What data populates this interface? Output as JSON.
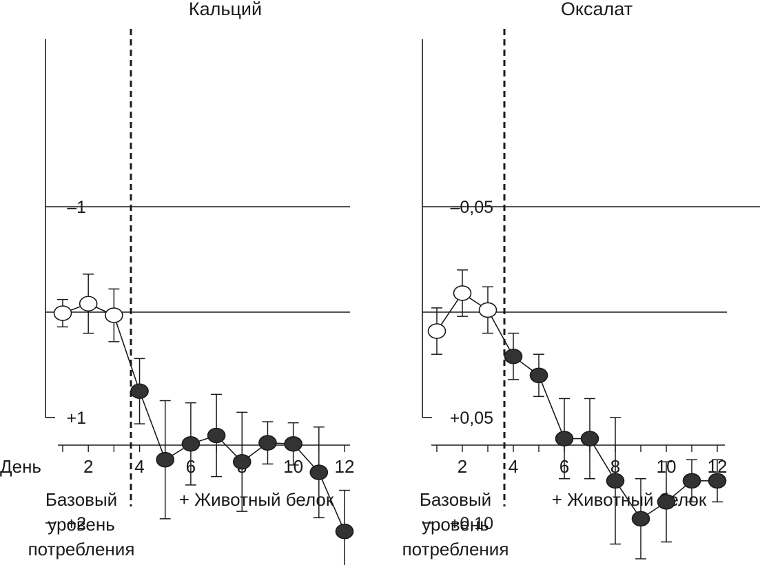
{
  "x_axis_label": "День",
  "chart_data": [
    {
      "type": "line",
      "title": "Кальций",
      "ylim": [
        -1,
        2.4
      ],
      "y_ticks": [
        {
          "value": 2,
          "label": "+2"
        },
        {
          "value": 1,
          "label": "+1"
        },
        {
          "value": -1,
          "label": "–1"
        }
      ],
      "x_ticks": [
        2,
        4,
        6,
        8,
        10,
        12
      ],
      "phases": [
        {
          "lines": [
            "Базовый",
            "уровень",
            "потребления"
          ]
        },
        {
          "lines": [
            "+ Животный белок"
          ]
        }
      ],
      "series": [
        {
          "marker": "open",
          "points": [
            {
              "x": 1,
              "y": 0.01,
              "err": 0.13
            },
            {
              "x": 2,
              "y": -0.08,
              "err": 0.28
            },
            {
              "x": 3,
              "y": 0.03,
              "err": 0.25
            }
          ]
        },
        {
          "marker": "filled",
          "points": [
            {
              "x": 4,
              "y": 0.75,
              "err": 0.31
            },
            {
              "x": 5,
              "y": 1.4,
              "err": 0.56
            },
            {
              "x": 6,
              "y": 1.25,
              "err": 0.39
            },
            {
              "x": 7,
              "y": 1.17,
              "err": 0.39
            },
            {
              "x": 8,
              "y": 1.42,
              "err": 0.47
            },
            {
              "x": 9,
              "y": 1.24,
              "err": 0.2
            },
            {
              "x": 10,
              "y": 1.25,
              "err": 0.2
            },
            {
              "x": 11,
              "y": 1.52,
              "err": 0.43
            },
            {
              "x": 12,
              "y": 2.08,
              "err": 0.39
            }
          ]
        }
      ],
      "baseline_divider_after_day": 3,
      "grid": false
    },
    {
      "type": "line",
      "title": "Оксалат",
      "ylim": [
        -0.05,
        0.125
      ],
      "y_ticks": [
        {
          "value": 0.1,
          "label": "+0,10"
        },
        {
          "value": 0.05,
          "label": "+0,05"
        },
        {
          "value": -0.05,
          "label": "–0,05"
        }
      ],
      "x_ticks": [
        2,
        4,
        6,
        8,
        10,
        12
      ],
      "phases": [
        {
          "lines": [
            "Базовый",
            "уровень",
            "потребления"
          ]
        },
        {
          "lines": [
            "+ Животный белок"
          ]
        }
      ],
      "series": [
        {
          "marker": "open",
          "points": [
            {
              "x": 1,
              "y": 0.009,
              "err": 0.011
            },
            {
              "x": 2,
              "y": -0.009,
              "err": 0.011
            },
            {
              "x": 3,
              "y": -0.001,
              "err": 0.011
            }
          ]
        },
        {
          "marker": "filled",
          "points": [
            {
              "x": 4,
              "y": 0.021,
              "err": 0.011
            },
            {
              "x": 5,
              "y": 0.03,
              "err": 0.01
            },
            {
              "x": 6,
              "y": 0.06,
              "err": 0.019
            },
            {
              "x": 7,
              "y": 0.06,
              "err": 0.019
            },
            {
              "x": 8,
              "y": 0.08,
              "err": 0.03
            },
            {
              "x": 9,
              "y": 0.098,
              "err": 0.019
            },
            {
              "x": 10,
              "y": 0.09,
              "err": 0.019
            },
            {
              "x": 11,
              "y": 0.08,
              "err": 0.01
            },
            {
              "x": 12,
              "y": 0.08,
              "err": 0.01
            }
          ]
        }
      ],
      "baseline_divider_after_day": 3,
      "grid": false
    }
  ]
}
